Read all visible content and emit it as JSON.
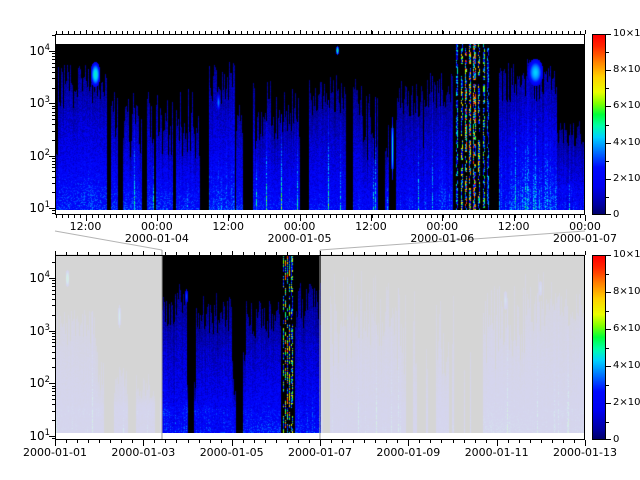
{
  "top_panel": {
    "y_axis": {
      "ticks": [
        {
          "text": "10",
          "sup": "1"
        },
        {
          "text": "10",
          "sup": "2"
        },
        {
          "text": "10",
          "sup": "3"
        },
        {
          "text": "10",
          "sup": "4"
        }
      ]
    },
    "x_axis": {
      "time_labels": [
        "12:00",
        "00:00",
        "12:00",
        "00:00",
        "12:00",
        "00:00",
        "12:00",
        "00:00"
      ],
      "date_labels": [
        "2000-01-04",
        "2000-01-05",
        "2000-01-06",
        "2000-01-07"
      ]
    },
    "colorbar": {
      "tick_labels": [
        {
          "text": "0",
          "sup": ""
        },
        {
          "text": "2×10",
          "sup": "7"
        },
        {
          "text": "4×10",
          "sup": "7"
        },
        {
          "text": "6×10",
          "sup": "7"
        },
        {
          "text": "8×10",
          "sup": "7"
        },
        {
          "text": "10×10",
          "sup": "7"
        }
      ]
    }
  },
  "bottom_panel": {
    "y_axis": {
      "ticks": [
        {
          "text": "10",
          "sup": "1"
        },
        {
          "text": "10",
          "sup": "2"
        },
        {
          "text": "10",
          "sup": "3"
        },
        {
          "text": "10",
          "sup": "4"
        }
      ]
    },
    "x_axis": {
      "date_labels": [
        "2000-01-01",
        "2000-01-03",
        "2000-01-05",
        "2000-01-07",
        "2000-01-09",
        "2000-01-11",
        "2000-01-13"
      ]
    },
    "colorbar": {
      "tick_labels": [
        {
          "text": "0",
          "sup": ""
        },
        {
          "text": "2×10",
          "sup": "7"
        },
        {
          "text": "4×10",
          "sup": "7"
        },
        {
          "text": "6×10",
          "sup": "7"
        },
        {
          "text": "8×10",
          "sup": "7"
        },
        {
          "text": "10×10",
          "sup": "7"
        }
      ]
    }
  },
  "chart_data": [
    {
      "type": "heatmap",
      "id": "detail-spectrogram",
      "x_axis": {
        "range": [
          "2000-01-03 ~07:00",
          "2000-01-07 00:00"
        ],
        "major_ticks": [
          "2000-01-03 12:00",
          "2000-01-04 00:00",
          "2000-01-04 12:00",
          "2000-01-05 00:00",
          "2000-01-05 12:00",
          "2000-01-06 00:00",
          "2000-01-06 12:00",
          "2000-01-07 00:00"
        ],
        "minor_tick_interval": "1 hour"
      },
      "y_axis": {
        "scale": "log",
        "range": [
          10,
          20000
        ],
        "major_ticks": [
          10,
          100,
          1000,
          10000
        ]
      },
      "color_axis": {
        "range": [
          0,
          100000000
        ],
        "major_ticks": [
          0,
          20000000,
          40000000,
          60000000,
          80000000,
          100000000
        ],
        "colormap": "rainbow (dark blue → blue → cyan → green → yellow → orange → red)"
      },
      "content_summary": "Black background with vertical deep-blue streaks of varying height; persistent brighter blue band near y≈20-40; isolated black data gaps; bright cyan patch near 2000-01-03 13:00 at y≈5000; broadband multicolor burst (speckled red/green/yellow up to ~1e8) around 2000-01-06 05:00-09:00; bright blue/cyan column cluster near 2000-01-06 19:00-21:00"
    },
    {
      "type": "heatmap",
      "id": "context-spectrogram",
      "x_axis": {
        "range": [
          "2000-01-01",
          "2000-01-13"
        ],
        "major_ticks": [
          "2000-01-01",
          "2000-01-03",
          "2000-01-05",
          "2000-01-07",
          "2000-01-09",
          "2000-01-11",
          "2000-01-13"
        ],
        "minor_tick_interval": "6 hours"
      },
      "y_axis": {
        "scale": "log",
        "range": [
          10,
          20000
        ],
        "major_ticks": [
          10,
          100,
          1000,
          10000
        ]
      },
      "color_axis": {
        "range": [
          0,
          100000000
        ],
        "major_ticks": [
          0,
          20000000,
          40000000,
          60000000,
          80000000,
          100000000
        ],
        "colormap": "rainbow (dark blue → blue → cyan → green → yellow → orange → red)"
      },
      "highlight_window": [
        "2000-01-03 ~07:00",
        "2000-01-07 00:00"
      ],
      "content_summary": "Same dataset over 12 days; the zoom window 2000-01-03 to 2000-01-07 is shown at full contrast and connected by gray lines to the detail panel above; everything outside the window is dimmed by a light gray wash; the intense multicolor burst near 2000-01-06 06:00 is visible inside the window"
    }
  ]
}
